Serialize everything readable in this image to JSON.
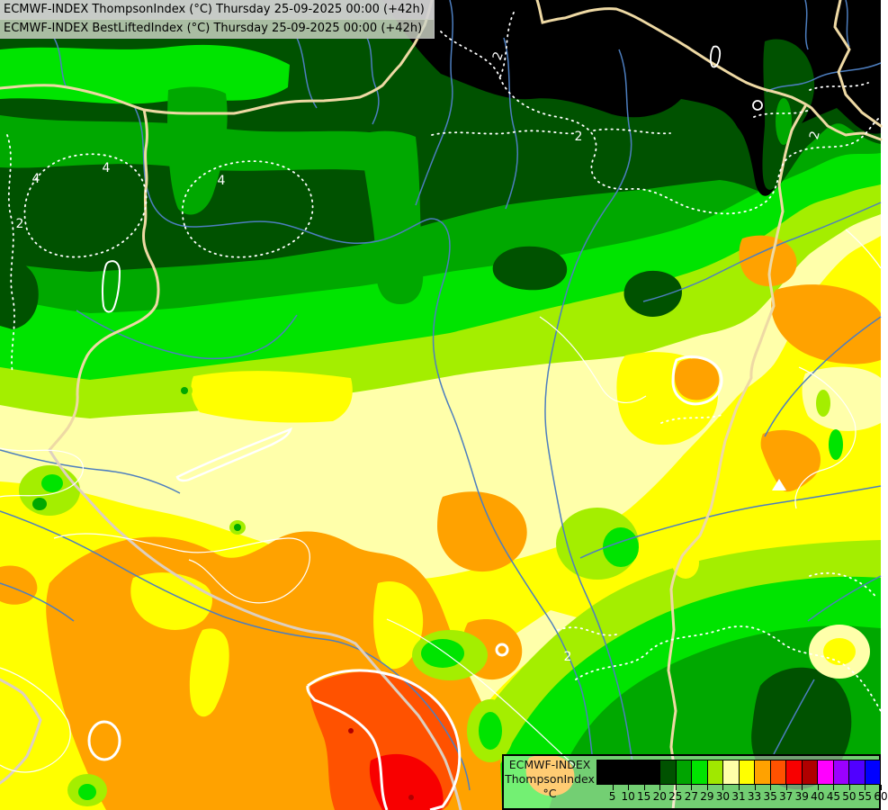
{
  "header": {
    "line1": "ECMWF-INDEX ThompsonIndex (°C) Thursday 25-09-2025 00:00 (+42h)",
    "line2": "ECMWF-INDEX BestLiftedIndex (°C) Thursday 25-09-2025 00:00 (+42h)"
  },
  "legend": {
    "product": "ECMWF-INDEX",
    "index_name": "ThompsonIndex",
    "units": "°C",
    "cells": [
      {
        "label": "5",
        "color": "#000000"
      },
      {
        "label": "10",
        "color": "#000000"
      },
      {
        "label": "15",
        "color": "#000000"
      },
      {
        "label": "20",
        "color": "#000000"
      },
      {
        "label": "25",
        "color": "#005200"
      },
      {
        "label": "27",
        "color": "#00a400"
      },
      {
        "label": "29",
        "color": "#00e400"
      },
      {
        "label": "30",
        "color": "#a0e800"
      },
      {
        "label": "31",
        "color": "#ffffa8"
      },
      {
        "label": "33",
        "color": "#ffff00"
      },
      {
        "label": "35",
        "color": "#ffa200"
      },
      {
        "label": "37",
        "color": "#ff5200"
      },
      {
        "label": "39",
        "color": "#f80000"
      },
      {
        "label": "40",
        "color": "#b00000"
      },
      {
        "label": "45",
        "color": "#ff00ff"
      },
      {
        "label": "50",
        "color": "#9b00ff"
      },
      {
        "label": "55",
        "color": "#5000ff"
      },
      {
        "label": "60",
        "color": "#0000ff"
      }
    ]
  },
  "map": {
    "contour_labels": [
      {
        "text": "4"
      },
      {
        "text": "4"
      },
      {
        "text": "4"
      },
      {
        "text": "2"
      },
      {
        "text": "2"
      },
      {
        "text": "2"
      },
      {
        "text": "2"
      },
      {
        "text": "2"
      }
    ],
    "palette": {
      "black": "#000000",
      "dark_green": "#005200",
      "green": "#00a800",
      "bright_green": "#00e400",
      "chartreuse": "#a4ee00",
      "cream": "#ffffaa",
      "yellow": "#ffff00",
      "orange": "#ffa200",
      "orange_red": "#ff5200",
      "red": "#f80000",
      "dark_red": "#b00000",
      "river": "#4d7ebf",
      "border": "#eed9a4",
      "border_pale": "#ddcfc0",
      "contour": "#ffffff"
    }
  }
}
